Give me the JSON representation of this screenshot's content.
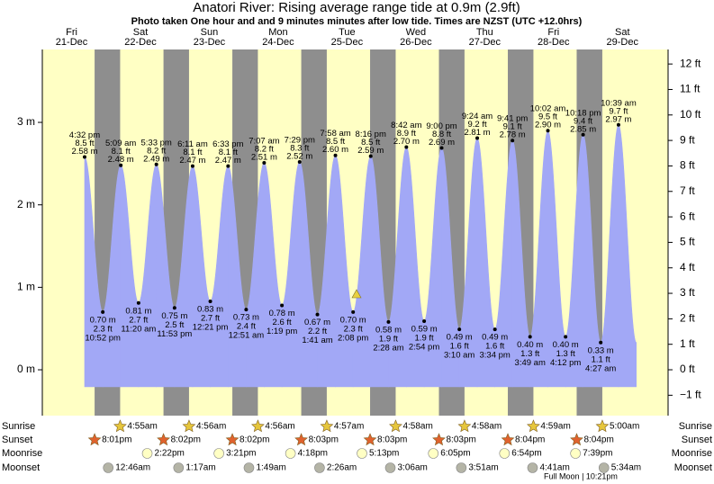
{
  "chart_data": {
    "type": "tide",
    "title": "Anatori River: Rising average range tide at 0.9m (2.9ft)",
    "subtitle": "Photo taken One hour and and 9 minutes minutes after low tide. Times are NZST (UTC +12.0hrs)",
    "ylim": [
      -0.556,
      3.884
    ],
    "yticks": [
      {
        "value": 0,
        "label": "0 m"
      },
      {
        "value": 1,
        "label": "1 m"
      },
      {
        "value": 2,
        "label": "2 m"
      },
      {
        "value": 3,
        "label": "3 m"
      }
    ],
    "y2lim": [
      -1.8,
      12.57
    ],
    "y2ticks": [
      {
        "value": -1,
        "label": "−1 ft"
      },
      {
        "value": 0,
        "label": "0 ft"
      },
      {
        "value": 1,
        "label": "1 ft"
      },
      {
        "value": 2,
        "label": "2 ft"
      },
      {
        "value": 3,
        "label": "3 ft"
      },
      {
        "value": 4,
        "label": "4 ft"
      },
      {
        "value": 5,
        "label": "5 ft"
      },
      {
        "value": 6,
        "label": "6 ft"
      },
      {
        "value": 7,
        "label": "7 ft"
      },
      {
        "value": 8,
        "label": "8 ft"
      },
      {
        "value": 9,
        "label": "9 ft"
      },
      {
        "value": 10,
        "label": "10 ft"
      },
      {
        "value": 11,
        "label": "11 ft"
      },
      {
        "value": 12,
        "label": "12 ft"
      }
    ],
    "colors": {
      "day": "#dd0000",
      "plot": "#ffffc4",
      "night": "#8e8e8e",
      "fill": "#a2a8f6",
      "sunrise": "#e6c63c",
      "sunset": "#e0622e",
      "moonrise": "#ffffc4",
      "moonset": "#b4b4a6"
    },
    "row_labels": [
      "Sunrise",
      "Sunset",
      "Moonrise",
      "Moonset"
    ],
    "annotation": "Full Moon | 10:21pm",
    "days": [
      {
        "day": "Fri",
        "date": "21-Dec",
        "sunset": "8:01pm",
        "tides": [
          {
            "time": "4:32 pm",
            "value": 2.58,
            "value_label": "2.58 m",
            "feet_label": "8.5 ft"
          },
          {
            "time": "10:52 pm",
            "value": 0.7,
            "value_label": "0.70 m",
            "feet_label": "2.3 ft"
          }
        ]
      },
      {
        "day": "Sat",
        "date": "22-Dec",
        "sunrise": "4:55am",
        "sunset": "8:02pm",
        "moonrise": "2:22pm",
        "moonset": "12:46am",
        "tides": [
          {
            "time": "5:09 am",
            "value": 2.48,
            "value_label": "2.48 m",
            "feet_label": "8.1 ft"
          },
          {
            "time": "11:20 am",
            "value": 0.81,
            "value_label": "0.81 m",
            "feet_label": "2.7 ft"
          },
          {
            "time": "5:33 pm",
            "value": 2.49,
            "value_label": "2.49 m",
            "feet_label": "8.2 ft"
          },
          {
            "time": "11:53 pm",
            "value": 0.75,
            "value_label": "0.75 m",
            "feet_label": "2.5 ft"
          }
        ]
      },
      {
        "day": "Sun",
        "date": "23-Dec",
        "sunrise": "4:56am",
        "sunset": "8:02pm",
        "moonrise": "3:21pm",
        "moonset": "1:17am",
        "tides": [
          {
            "time": "6:11 am",
            "value": 2.47,
            "value_label": "2.47 m",
            "feet_label": "8.1 ft"
          },
          {
            "time": "12:21 pm",
            "value": 0.83,
            "value_label": "0.83 m",
            "feet_label": "2.7 ft"
          },
          {
            "time": "6:33 pm",
            "value": 2.47,
            "value_label": "2.47 m",
            "feet_label": "8.1 ft"
          }
        ]
      },
      {
        "day": "Mon",
        "date": "24-Dec",
        "sunrise": "4:56am",
        "sunset": "8:03pm",
        "moonrise": "4:18pm",
        "moonset": "1:49am",
        "tides": [
          {
            "time": "12:51 am",
            "value": 0.73,
            "value_label": "0.73 m",
            "feet_label": "2.4 ft"
          },
          {
            "time": "7:07 am",
            "value": 2.51,
            "value_label": "2.51 m",
            "feet_label": "8.2 ft"
          },
          {
            "time": "1:19 pm",
            "value": 0.78,
            "value_label": "0.78 m",
            "feet_label": "2.6 ft"
          },
          {
            "time": "7:29 pm",
            "value": 2.52,
            "value_label": "2.52 m",
            "feet_label": "8.3 ft"
          }
        ]
      },
      {
        "day": "Tue",
        "date": "25-Dec",
        "sunrise": "4:57am",
        "sunset": "8:03pm",
        "moonrise": "5:13pm",
        "moonset": "2:26am",
        "tides": [
          {
            "time": "1:41 am",
            "value": 0.67,
            "value_label": "0.67 m",
            "feet_label": "2.2 ft"
          },
          {
            "time": "7:58 am",
            "value": 2.6,
            "value_label": "2.60 m",
            "feet_label": "8.5 ft"
          },
          {
            "time": "2:08 pm",
            "value": 0.7,
            "value_label": "0.70 m",
            "feet_label": "2.3 ft"
          },
          {
            "time": "8:16 pm",
            "value": 2.59,
            "value_label": "2.59 m",
            "feet_label": "8.5 ft"
          }
        ]
      },
      {
        "day": "Wed",
        "date": "26-Dec",
        "sunrise": "4:58am",
        "sunset": "8:03pm",
        "moonrise": "6:05pm",
        "moonset": "3:06am",
        "tides": [
          {
            "time": "2:28 am",
            "value": 0.58,
            "value_label": "0.58 m",
            "feet_label": "1.9 ft"
          },
          {
            "time": "8:42 am",
            "value": 2.7,
            "value_label": "2.70 m",
            "feet_label": "8.9 ft"
          },
          {
            "time": "2:54 pm",
            "value": 0.59,
            "value_label": "0.59 m",
            "feet_label": "1.9 ft"
          },
          {
            "time": "9:00 pm",
            "value": 2.69,
            "value_label": "2.69 m",
            "feet_label": "8.8 ft"
          }
        ]
      },
      {
        "day": "Thu",
        "date": "27-Dec",
        "sunrise": "4:58am",
        "sunset": "8:04pm",
        "moonrise": "6:54pm",
        "moonset": "3:51am",
        "tides": [
          {
            "time": "3:10 am",
            "value": 0.49,
            "value_label": "0.49 m",
            "feet_label": "1.6 ft"
          },
          {
            "time": "9:24 am",
            "value": 2.81,
            "value_label": "2.81 m",
            "feet_label": "9.2 ft"
          },
          {
            "time": "3:34 pm",
            "value": 0.49,
            "value_label": "0.49 m",
            "feet_label": "1.6 ft"
          },
          {
            "time": "9:41 pm",
            "value": 2.78,
            "value_label": "2.78 m",
            "feet_label": "9.1 ft"
          }
        ]
      },
      {
        "day": "Fri",
        "date": "28-Dec",
        "sunrise": "4:59am",
        "sunset": "8:04pm",
        "moonrise": "7:39pm",
        "moonset": "4:41am",
        "tides": [
          {
            "time": "3:49 am",
            "value": 0.4,
            "value_label": "0.40 m",
            "feet_label": "1.3 ft"
          },
          {
            "time": "10:02 am",
            "value": 2.9,
            "value_label": "2.90 m",
            "feet_label": "9.5 ft"
          },
          {
            "time": "4:12 pm",
            "value": 0.4,
            "value_label": "0.40 m",
            "feet_label": "1.3 ft"
          },
          {
            "time": "10:18 pm",
            "value": 2.85,
            "value_label": "2.85 m",
            "feet_label": "9.4 ft"
          }
        ]
      },
      {
        "day": "Sat",
        "date": "29-Dec",
        "sunrise": "5:00am",
        "moonset": "5:34am",
        "tides": [
          {
            "time": "4:27 am",
            "value": 0.33,
            "value_label": "0.33 m",
            "feet_label": "1.1 ft"
          },
          {
            "time": "10:39 am",
            "value": 2.97,
            "value_label": "2.97 m",
            "feet_label": "9.7 ft"
          }
        ]
      }
    ]
  }
}
